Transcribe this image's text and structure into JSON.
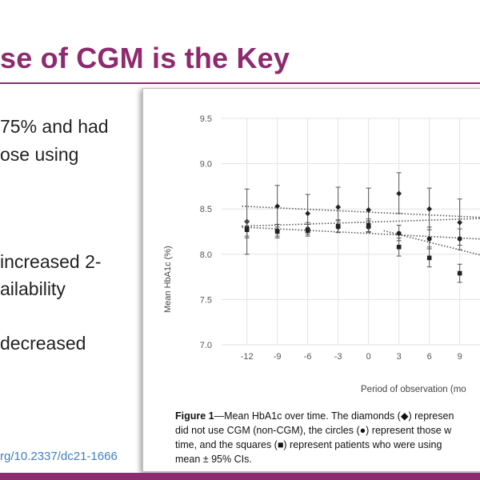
{
  "slide": {
    "title": "se of CGM is the Key",
    "bullets": [
      "75% and had",
      "ose using",
      "increased  2-",
      "ailability",
      "decreased"
    ],
    "doi": "rg/10.2337/dc21-1666"
  },
  "figure": {
    "caption_label": "Figure 1",
    "caption_lines": [
      "—Mean HbA1c over time. The diamonds (◆) represen",
      "did not use CGM (non-CGM), the circles (●) represent those w",
      "time, and the squares (■) represent patients who were using",
      "mean ± 95% CIs."
    ]
  },
  "chart_data": {
    "type": "scatter",
    "ylabel": "Mean HbA1c (%)",
    "xlabel": "Period of observation (mo",
    "x_ticks": [
      -12,
      -9,
      -6,
      -3,
      0,
      3,
      6,
      9
    ],
    "y_ticks": [
      "7.0",
      "7.5",
      "8.0",
      "8.5",
      "9.0",
      "9.5"
    ],
    "ylim": [
      7.0,
      9.5
    ],
    "xlim": [
      -14.5,
      12.5
    ],
    "grid": true,
    "series": [
      {
        "marker": "diamond",
        "color": "#222222",
        "points": [
          {
            "x": -12,
            "y": 8.36,
            "lo": 8.0,
            "hi": 8.72
          },
          {
            "x": -9,
            "y": 8.53,
            "lo": 8.3,
            "hi": 8.76
          },
          {
            "x": -6,
            "y": 8.45,
            "lo": 8.24,
            "hi": 8.66
          },
          {
            "x": -3,
            "y": 8.52,
            "lo": 8.3,
            "hi": 8.74
          },
          {
            "x": 0,
            "y": 8.49,
            "lo": 8.25,
            "hi": 8.73
          },
          {
            "x": 3,
            "y": 8.67,
            "lo": 8.45,
            "hi": 8.9
          },
          {
            "x": 6,
            "y": 8.5,
            "lo": 8.27,
            "hi": 8.73
          },
          {
            "x": 9,
            "y": 8.35,
            "lo": 8.1,
            "hi": 8.61
          }
        ]
      },
      {
        "marker": "circle",
        "color": "#222222",
        "points": [
          {
            "x": -12,
            "y": 8.29,
            "lo": 8.2,
            "hi": 8.37
          },
          {
            "x": -9,
            "y": 8.26,
            "lo": 8.2,
            "hi": 8.33
          },
          {
            "x": -6,
            "y": 8.28,
            "lo": 8.22,
            "hi": 8.35
          },
          {
            "x": -3,
            "y": 8.3,
            "lo": 8.24,
            "hi": 8.37
          },
          {
            "x": 0,
            "y": 8.3,
            "lo": 8.24,
            "hi": 8.37
          },
          {
            "x": 3,
            "y": 8.23,
            "lo": 8.15,
            "hi": 8.32
          },
          {
            "x": 6,
            "y": 8.17,
            "lo": 8.06,
            "hi": 8.3
          },
          {
            "x": 9,
            "y": 8.17,
            "lo": 8.05,
            "hi": 8.28
          }
        ]
      },
      {
        "marker": "square",
        "color": "#222222",
        "points": [
          {
            "x": -12,
            "y": 8.27,
            "lo": 8.18,
            "hi": 8.36
          },
          {
            "x": -9,
            "y": 8.25,
            "lo": 8.18,
            "hi": 8.33
          },
          {
            "x": -6,
            "y": 8.26,
            "lo": 8.2,
            "hi": 8.33
          },
          {
            "x": -3,
            "y": 8.31,
            "lo": 8.24,
            "hi": 8.38
          },
          {
            "x": 0,
            "y": 8.32,
            "lo": 8.25,
            "hi": 8.39
          },
          {
            "x": 3,
            "y": 8.08,
            "lo": 7.98,
            "hi": 8.18
          },
          {
            "x": 6,
            "y": 7.96,
            "lo": 7.86,
            "hi": 8.08
          },
          {
            "x": 9,
            "y": 7.79,
            "lo": 7.69,
            "hi": 7.89
          }
        ]
      }
    ],
    "trendlines": [
      {
        "from": [
          -12.5,
          8.53
        ],
        "to": [
          12.5,
          8.4
        ]
      },
      {
        "from": [
          -12.5,
          8.31
        ],
        "to": [
          12.5,
          8.4
        ]
      },
      {
        "from": [
          -12.5,
          8.3
        ],
        "to": [
          12.5,
          8.16
        ]
      },
      {
        "from": [
          1.5,
          8.26
        ],
        "to": [
          12.5,
          7.95
        ]
      }
    ]
  }
}
